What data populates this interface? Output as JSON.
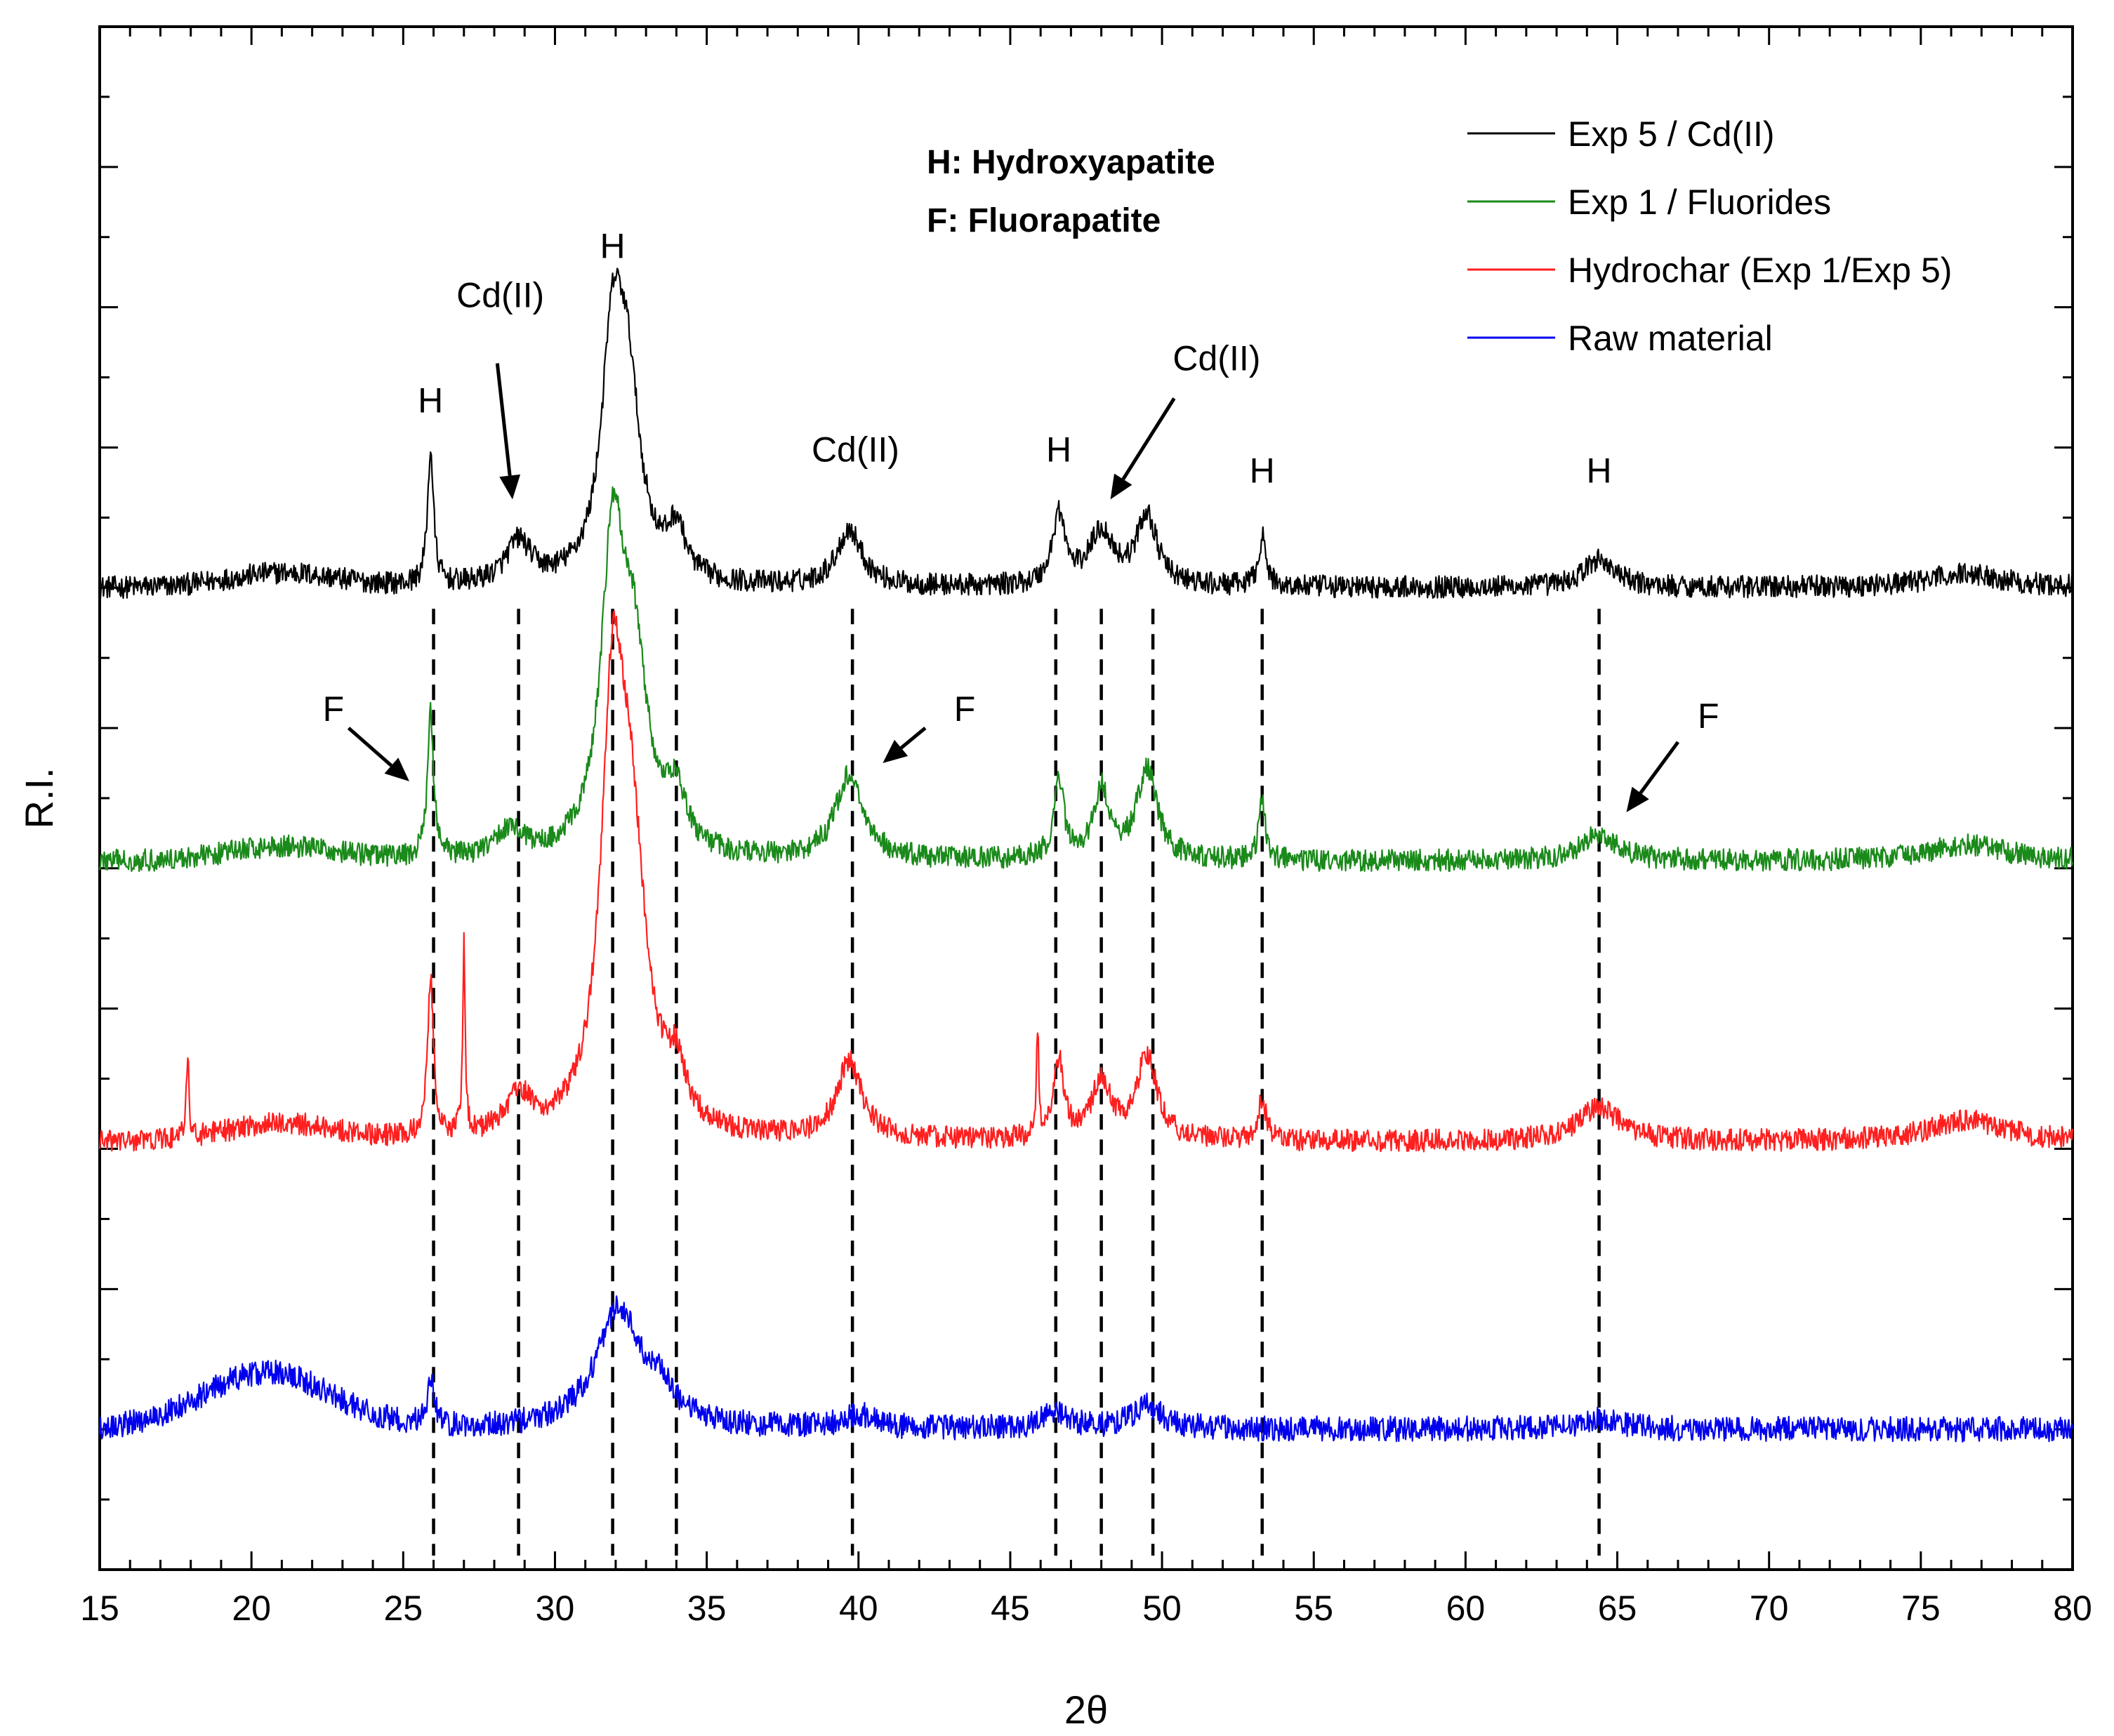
{
  "chart_data": {
    "type": "line",
    "title": "",
    "xlabel": "2θ",
    "ylabel": "R.I.",
    "xlim": [
      15,
      80
    ],
    "ylim": [
      0,
      11
    ],
    "x_ticks": [
      15,
      20,
      25,
      30,
      35,
      40,
      45,
      50,
      55,
      60,
      65,
      70,
      75,
      80
    ],
    "x_tick_labels": [
      "15",
      "20",
      "25",
      "30",
      "35",
      "40",
      "45",
      "50",
      "55",
      "60",
      "65",
      "70",
      "75",
      "80"
    ],
    "grid": false,
    "legend_position": "top-right",
    "series": [
      {
        "name": "Exp 5 / Cd(II)",
        "color": "#000000",
        "baseline": 7.0,
        "noise": 0.08,
        "hump": [
          {
            "center": 21,
            "width": 2.5,
            "height": 0.1
          }
        ],
        "peaks": [
          {
            "x": 25.9,
            "height": 0.95,
            "width": 0.12
          },
          {
            "x": 28.8,
            "height": 0.3,
            "width": 0.5
          },
          {
            "x": 31.9,
            "height": 1.55,
            "width": 0.45
          },
          {
            "x": 32.4,
            "height": 1.2,
            "width": 0.5
          },
          {
            "x": 34.0,
            "height": 0.35,
            "width": 0.35
          },
          {
            "x": 39.7,
            "height": 0.4,
            "width": 0.5
          },
          {
            "x": 46.6,
            "height": 0.5,
            "width": 0.25
          },
          {
            "x": 48.0,
            "height": 0.38,
            "width": 0.5
          },
          {
            "x": 49.5,
            "height": 0.5,
            "width": 0.4
          },
          {
            "x": 53.3,
            "height": 0.35,
            "width": 0.15
          },
          {
            "x": 64.4,
            "height": 0.2,
            "width": 0.6
          },
          {
            "x": 76.5,
            "height": 0.1,
            "width": 1.5
          }
        ]
      },
      {
        "name": "Exp 1 / Fluorides",
        "color": "#1a8a1a",
        "baseline": 5.05,
        "noise": 0.08,
        "hump": [
          {
            "center": 21,
            "width": 2.5,
            "height": 0.1
          }
        ],
        "peaks": [
          {
            "x": 25.9,
            "height": 1.05,
            "width": 0.12
          },
          {
            "x": 28.5,
            "height": 0.2,
            "width": 0.5
          },
          {
            "x": 31.9,
            "height": 2.1,
            "width": 0.45
          },
          {
            "x": 32.6,
            "height": 1.3,
            "width": 0.55
          },
          {
            "x": 34.0,
            "height": 0.4,
            "width": 0.35
          },
          {
            "x": 39.7,
            "height": 0.6,
            "width": 0.55
          },
          {
            "x": 46.6,
            "height": 0.55,
            "width": 0.2
          },
          {
            "x": 48.0,
            "height": 0.5,
            "width": 0.3
          },
          {
            "x": 49.5,
            "height": 0.65,
            "width": 0.4
          },
          {
            "x": 53.3,
            "height": 0.45,
            "width": 0.12
          },
          {
            "x": 64.4,
            "height": 0.2,
            "width": 0.7
          },
          {
            "x": 76.5,
            "height": 0.12,
            "width": 1.5
          }
        ]
      },
      {
        "name": "Hydrochar (Exp 1/Exp 5)",
        "color": "#ff1f1f",
        "baseline": 3.05,
        "noise": 0.08,
        "hump": [
          {
            "center": 21,
            "width": 2.5,
            "height": 0.12
          }
        ],
        "peaks": [
          {
            "x": 17.9,
            "height": 0.6,
            "width": 0.05
          },
          {
            "x": 25.9,
            "height": 1.15,
            "width": 0.12
          },
          {
            "x": 27.0,
            "height": 1.35,
            "width": 0.05
          },
          {
            "x": 28.8,
            "height": 0.28,
            "width": 0.5
          },
          {
            "x": 31.9,
            "height": 2.7,
            "width": 0.45
          },
          {
            "x": 32.5,
            "height": 1.9,
            "width": 0.6
          },
          {
            "x": 34.0,
            "height": 0.35,
            "width": 0.35
          },
          {
            "x": 39.7,
            "height": 0.55,
            "width": 0.5
          },
          {
            "x": 45.9,
            "height": 0.75,
            "width": 0.05
          },
          {
            "x": 46.6,
            "height": 0.55,
            "width": 0.2
          },
          {
            "x": 48.0,
            "height": 0.4,
            "width": 0.4
          },
          {
            "x": 49.5,
            "height": 0.6,
            "width": 0.4
          },
          {
            "x": 53.3,
            "height": 0.3,
            "width": 0.15
          },
          {
            "x": 64.4,
            "height": 0.25,
            "width": 0.8
          },
          {
            "x": 76.5,
            "height": 0.15,
            "width": 1.5
          }
        ]
      },
      {
        "name": "Raw material",
        "color": "#0000ee",
        "baseline": 1.0,
        "noise": 0.09,
        "hump": [
          {
            "center": 20.5,
            "width": 3.0,
            "height": 0.4
          }
        ],
        "peaks": [
          {
            "x": 25.9,
            "height": 0.3,
            "width": 0.15
          },
          {
            "x": 32.1,
            "height": 0.85,
            "width": 0.9
          },
          {
            "x": 33.5,
            "height": 0.2,
            "width": 0.5
          },
          {
            "x": 40.0,
            "height": 0.1,
            "width": 0.6
          },
          {
            "x": 46.5,
            "height": 0.12,
            "width": 0.5
          },
          {
            "x": 49.5,
            "height": 0.17,
            "width": 0.6
          },
          {
            "x": 64.4,
            "height": 0.08,
            "width": 0.8
          }
        ]
      }
    ],
    "reference_lines_x": [
      26.0,
      28.8,
      31.9,
      34.0,
      39.8,
      46.5,
      48.0,
      49.7,
      53.3,
      64.4
    ],
    "annotations": [
      {
        "text": "H",
        "x": 25.9,
        "y": 8.25
      },
      {
        "text": "Cd(II)",
        "x": 28.2,
        "y": 9.0
      },
      {
        "text": "H",
        "x": 31.9,
        "y": 9.35
      },
      {
        "text": "Cd(II)",
        "x": 39.9,
        "y": 7.9
      },
      {
        "text": "H",
        "x": 46.6,
        "y": 7.9
      },
      {
        "text": "Cd(II)",
        "x": 51.8,
        "y": 8.55
      },
      {
        "text": "H",
        "x": 53.3,
        "y": 7.75
      },
      {
        "text": "H",
        "x": 64.4,
        "y": 7.75
      },
      {
        "text": "F",
        "x": 22.7,
        "y": 6.05
      },
      {
        "text": "F",
        "x": 43.5,
        "y": 6.05
      },
      {
        "text": "F",
        "x": 68.0,
        "y": 6.0
      }
    ],
    "arrows": [
      {
        "from": [
          28.1,
          8.6
        ],
        "to": [
          28.6,
          7.63
        ]
      },
      {
        "from": [
          50.4,
          8.35
        ],
        "to": [
          48.3,
          7.63
        ]
      },
      {
        "from": [
          23.2,
          6.0
        ],
        "to": [
          25.2,
          5.62
        ]
      },
      {
        "from": [
          42.2,
          6.0
        ],
        "to": [
          40.8,
          5.75
        ]
      },
      {
        "from": [
          67.0,
          5.9
        ],
        "to": [
          65.3,
          5.4
        ]
      }
    ],
    "definitions": [
      "H: Hydroxyapatite",
      "F: Fluorapatite"
    ]
  }
}
